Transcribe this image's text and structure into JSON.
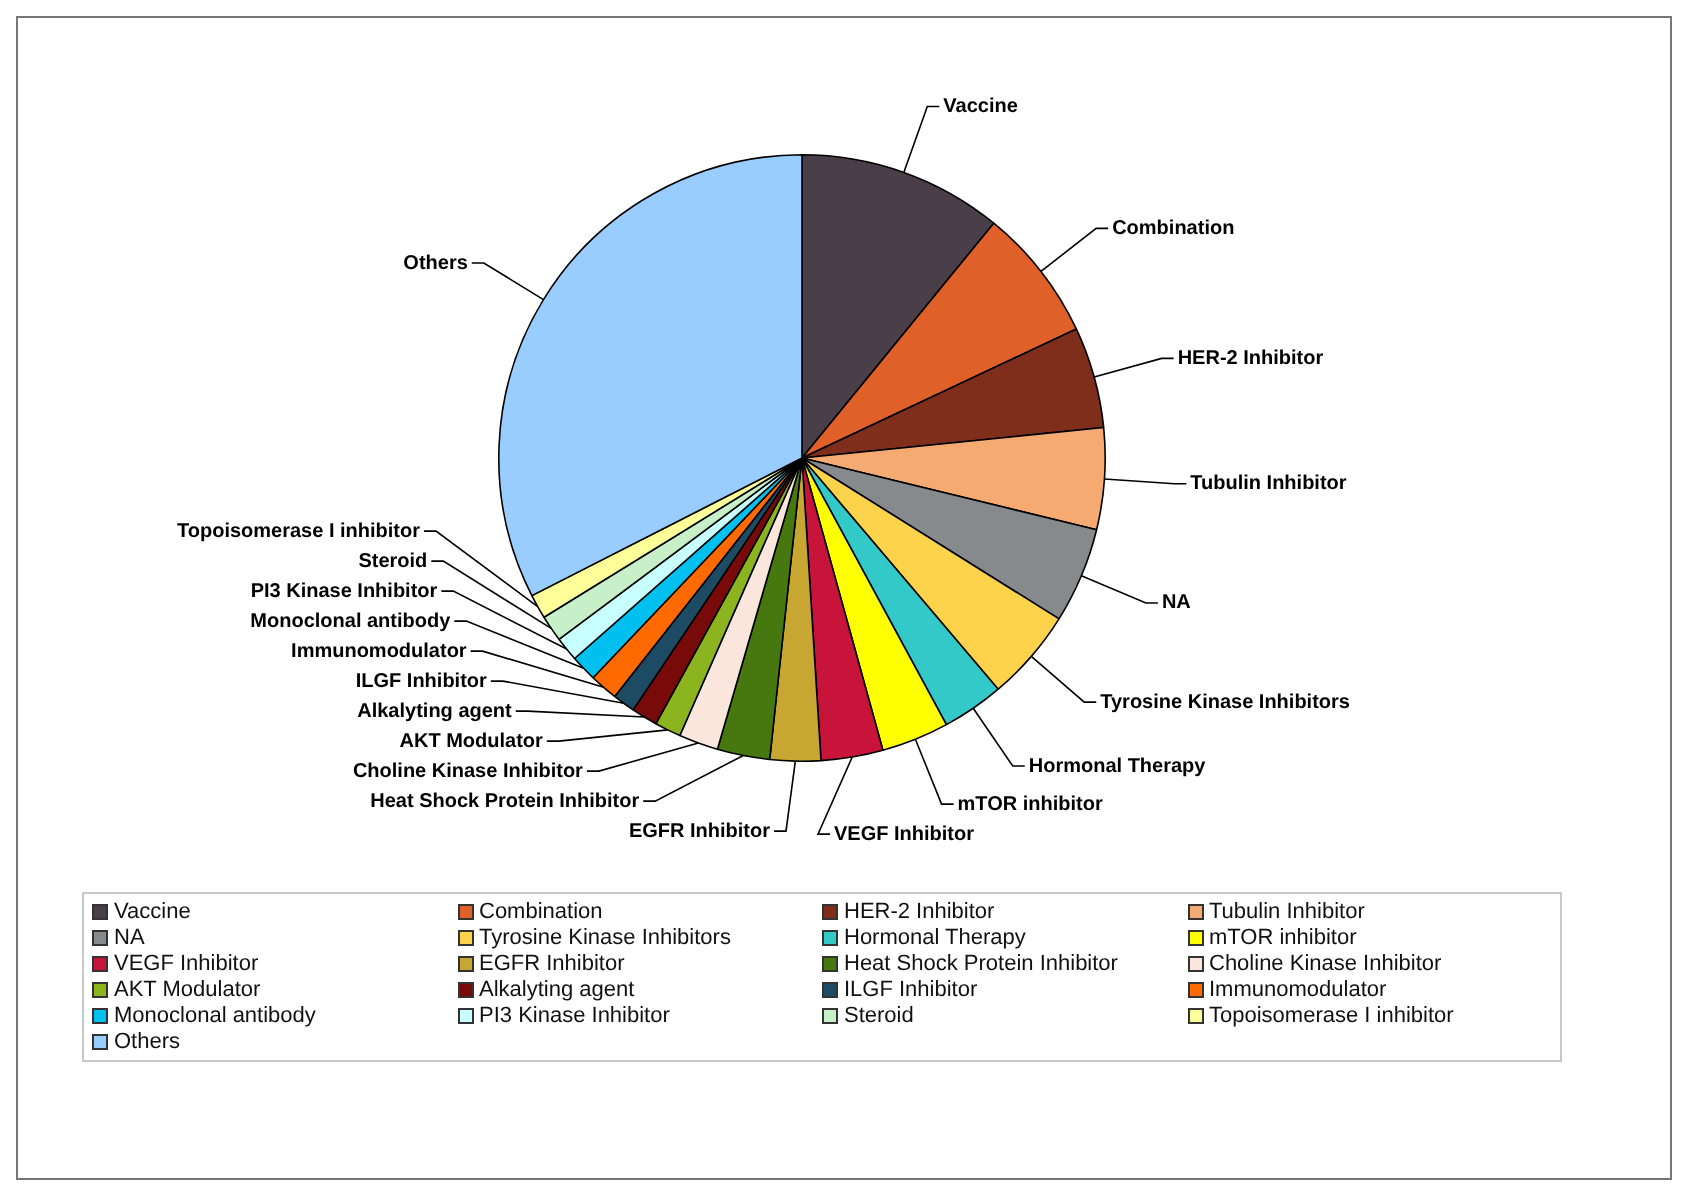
{
  "chart_data": {
    "type": "pie",
    "categories": [
      "Vaccine",
      "Combination",
      "HER-2 Inhibitor",
      "Tubulin Inhibitor",
      "NA",
      "Tyrosine Kinase Inhibitors",
      "Hormonal Therapy",
      "mTOR inhibitor",
      "VEGF Inhibitor",
      "EGFR Inhibitor",
      "Heat Shock Protein Inhibitor",
      "Choline Kinase Inhibitor",
      "AKT Modulator",
      "Alkalyting agent",
      "ILGF Inhibitor",
      "Immunomodulator",
      "Monoclonal antibody",
      "PI3 Kinase Inhibitor",
      "Steroid",
      "Topoisomerase I inhibitor",
      "Others"
    ],
    "values": [
      10.9,
      7.1,
      5.4,
      5.4,
      5.1,
      4.9,
      3.3,
      3.6,
      3.3,
      2.7,
      2.8,
      2.1,
      1.4,
      1.4,
      1.2,
      1.5,
      1.4,
      1.3,
      1.4,
      1.3,
      32.5
    ],
    "colors": [
      "#4a3f48",
      "#e0602a",
      "#7f2e1c",
      "#f5aa72",
      "#868a8c",
      "#fcd34a",
      "#33c9c9",
      "#ffff00",
      "#c8143a",
      "#c8a632",
      "#46780f",
      "#fae6dc",
      "#8cb41e",
      "#780a0a",
      "#1e4b64",
      "#ff6a00",
      "#00c0f0",
      "#c8ffff",
      "#c8f0c8",
      "#ffff99",
      "#99ccff"
    ],
    "legend": "bottom"
  }
}
